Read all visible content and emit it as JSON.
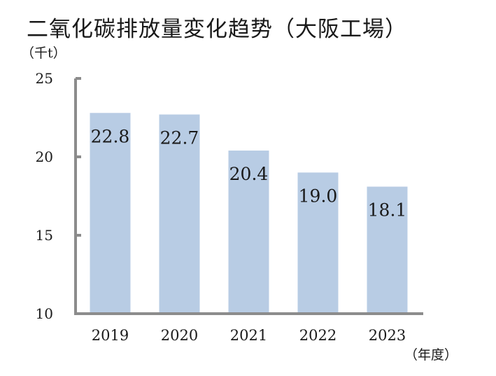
{
  "chart_data": {
    "type": "bar",
    "title": "二氧化碳排放量変化趋势（大阪工場）",
    "ylabel": "（千t）",
    "xlabel": "（年度）",
    "categories": [
      "2019",
      "2020",
      "2021",
      "2022",
      "2023"
    ],
    "values": [
      22.8,
      22.7,
      20.4,
      19.0,
      18.1
    ],
    "data_labels": [
      "22.8",
      "22.7",
      "20.4",
      "19.0",
      "18.1"
    ],
    "y_ticks": [
      "10",
      "15",
      "20",
      "25"
    ],
    "ylim": [
      10,
      25
    ],
    "grid": false,
    "legend": "none",
    "colors": {
      "bar": "#b8cce4",
      "axis": "#8c8c8c"
    }
  }
}
